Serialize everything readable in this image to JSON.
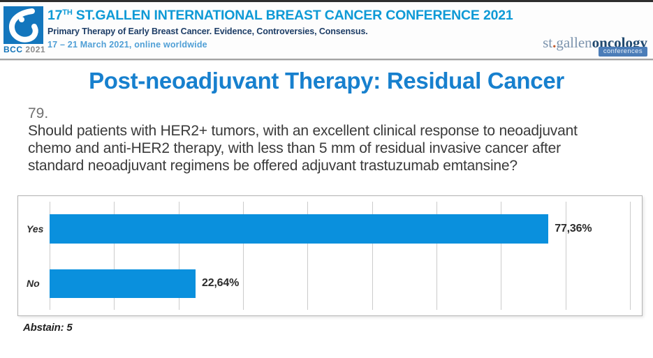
{
  "header": {
    "logo": {
      "bcc": "BCC",
      "year": "2021"
    },
    "title_num": "17",
    "title_sup": "TH",
    "title_rest": " ST.GALLEN INTERNATIONAL BREAST CANCER CONFERENCE 2021",
    "subtitle": "Primary Therapy of Early Breast Cancer. Evidence, Controversies, Consensus.",
    "date_line": "17 – 21 March 2021, online worldwide",
    "brand": {
      "part1": "st",
      "dot": ".",
      "part2": "gallen",
      "part3": "oncology",
      "badge": "conferences"
    }
  },
  "slide": {
    "title": "Post-neoadjuvant Therapy: Residual Cancer",
    "question_number": "79.",
    "question_text": "Should patients with HER2+ tumors, with an excellent clinical response to neoadjuvant chemo and anti-HER2 therapy, with less than 5 mm of residual invasive cancer after standard neoadjuvant regimens be offered adjuvant trastuzumab emtansine?",
    "abstain_label": "Abstain: 5"
  },
  "chart_data": {
    "type": "bar",
    "orientation": "horizontal",
    "categories": [
      "Yes",
      "No"
    ],
    "values": [
      77.36,
      22.64
    ],
    "value_labels": [
      "77,36%",
      "22,64%"
    ],
    "xlim": [
      0,
      90
    ],
    "gridline_step": 10,
    "grid": true,
    "legend": "none",
    "bar_color": "#0a90dd",
    "abstain_count": 5
  },
  "colors": {
    "bar_blue": "#0a90dd",
    "slide_title_blue": "#1780ce",
    "header_cyan": "#0e9ad6",
    "header_navy": "#1d3d66",
    "header_date_blue": "#4f9fd6",
    "logo_square_blue": "#1376bd",
    "badge_blue": "#4b7db8"
  }
}
